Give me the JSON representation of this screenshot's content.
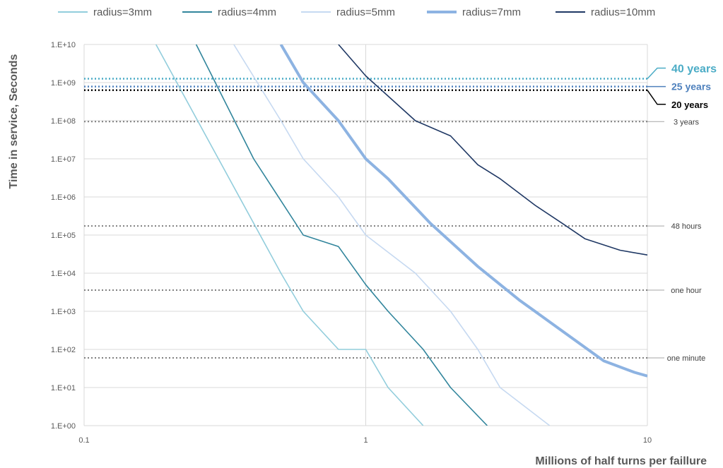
{
  "chart_data": {
    "type": "line",
    "x_scale": "log",
    "y_scale": "log",
    "xlim": [
      0.1,
      10
    ],
    "ylim": [
      1,
      10000000000
    ],
    "xlabel": "Millions of half turns per faillure",
    "ylabel": "Time in service, Seconds",
    "x_ticks": [
      {
        "value": 0.1,
        "label": "0.1"
      },
      {
        "value": 1,
        "label": "1"
      },
      {
        "value": 10,
        "label": "10"
      }
    ],
    "y_ticks": [
      {
        "value": 1,
        "label": "1.E+00"
      },
      {
        "value": 10,
        "label": "1.E+01"
      },
      {
        "value": 100,
        "label": "1.E+02"
      },
      {
        "value": 1000,
        "label": "1.E+03"
      },
      {
        "value": 10000,
        "label": "1.E+04"
      },
      {
        "value": 100000,
        "label": "1.E+05"
      },
      {
        "value": 1000000,
        "label": "1.E+06"
      },
      {
        "value": 10000000,
        "label": "1.E+07"
      },
      {
        "value": 100000000,
        "label": "1.E+08"
      },
      {
        "value": 1000000000,
        "label": "1.E+09"
      },
      {
        "value": 10000000000,
        "label": "1.E+10"
      }
    ],
    "grid": true,
    "legend_position": "top",
    "series": [
      {
        "name": "radius=3mm",
        "color": "#92cddc",
        "thick": false,
        "points": [
          [
            0.18,
            10000000000.0
          ],
          [
            0.3,
            10000000.0
          ],
          [
            0.5,
            10000.0
          ],
          [
            0.6,
            1000.0
          ],
          [
            0.8,
            100.0
          ],
          [
            1,
            100.0
          ],
          [
            1.2,
            10.0
          ],
          [
            1.6,
            1
          ]
        ]
      },
      {
        "name": "radius=4mm",
        "color": "#31859c",
        "thick": false,
        "points": [
          [
            0.25,
            10000000000.0
          ],
          [
            0.4,
            10000000.0
          ],
          [
            0.6,
            100000.0
          ],
          [
            0.8,
            50000.0
          ],
          [
            1,
            5000.0
          ],
          [
            1.2,
            1000.0
          ],
          [
            1.6,
            100.0
          ],
          [
            2,
            10.0
          ],
          [
            2.7,
            1
          ]
        ]
      },
      {
        "name": "radius=5mm",
        "color": "#c6d9f1",
        "thick": false,
        "points": [
          [
            0.34,
            10000000000.0
          ],
          [
            0.5,
            100000000.0
          ],
          [
            0.6,
            10000000.0
          ],
          [
            0.8,
            1000000.0
          ],
          [
            1,
            100000.0
          ],
          [
            1.5,
            10000.0
          ],
          [
            2,
            1000.0
          ],
          [
            2.5,
            100.0
          ],
          [
            3,
            10.0
          ],
          [
            4.5,
            1
          ]
        ]
      },
      {
        "name": "radius=7mm",
        "color": "#8db3e2",
        "thick": true,
        "points": [
          [
            0.5,
            10000000000.0
          ],
          [
            0.6,
            1000000000.0
          ],
          [
            0.8,
            100000000.0
          ],
          [
            1,
            10000000.0
          ],
          [
            1.2,
            3000000.0
          ],
          [
            1.7,
            200000.0
          ],
          [
            2.5,
            15000.0
          ],
          [
            3.5,
            2000.0
          ],
          [
            5,
            300.0
          ],
          [
            7,
            50.0
          ],
          [
            9,
            25.0
          ],
          [
            10,
            20.0
          ]
        ]
      },
      {
        "name": "radius=10mm",
        "color": "#1f3864",
        "thick": false,
        "points": [
          [
            0.8,
            10000000000.0
          ],
          [
            1,
            1500000000.0
          ],
          [
            1.5,
            100000000.0
          ],
          [
            2,
            40000000.0
          ],
          [
            2.5,
            7000000.0
          ],
          [
            3,
            3000000.0
          ],
          [
            4,
            600000.0
          ],
          [
            5,
            200000.0
          ],
          [
            6,
            80000.0
          ],
          [
            8,
            40000.0
          ],
          [
            10,
            30000.0
          ]
        ]
      }
    ],
    "reference_lines": [
      {
        "value": 1262000000,
        "label": "40 years",
        "color": "#4bacc6",
        "size": "big"
      },
      {
        "value": 788000000,
        "label": "25 years",
        "color": "#4f81bd",
        "size": "medium"
      },
      {
        "value": 631000000,
        "label": "20 years",
        "color": "#000000",
        "size": "medium-black"
      },
      {
        "value": 94600000,
        "label": "3 years",
        "color": "#808080",
        "size": "small"
      },
      {
        "value": 172800,
        "label": "48 hours",
        "color": "#808080",
        "size": "small"
      },
      {
        "value": 3600,
        "label": "one hour",
        "color": "#808080",
        "size": "small"
      },
      {
        "value": 60,
        "label": "one minute",
        "color": "#808080",
        "size": "small"
      }
    ]
  }
}
